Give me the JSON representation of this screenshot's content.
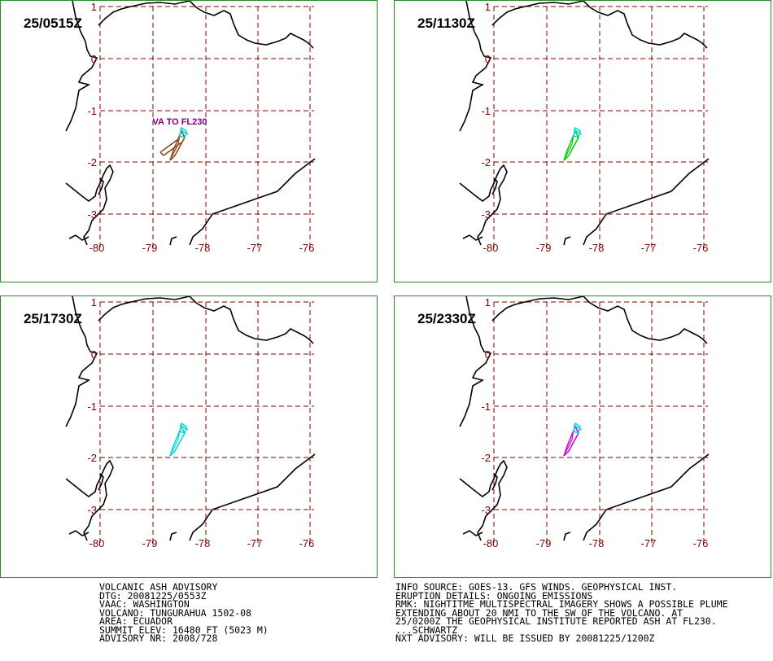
{
  "panels": [
    {
      "time": "25/0515Z",
      "plume_color": "#00d8d8",
      "plume_color2": "#8b4513",
      "annotation": "VA TO FL230",
      "annotation_color": "#800080"
    },
    {
      "time": "25/1130Z",
      "plume_color": "#00d8d8",
      "plume_color2": "#00cc00",
      "annotation": "",
      "annotation_color": ""
    },
    {
      "time": "25/1730Z",
      "plume_color": "#00d8d8",
      "plume_color2": "#00d8d8",
      "annotation": "",
      "annotation_color": ""
    },
    {
      "time": "25/2330Z",
      "plume_color": "#00d8d8",
      "plume_color2": "#cc00cc",
      "annotation": "",
      "annotation_color": ""
    }
  ],
  "axes": {
    "lon_labels": [
      "-80",
      "-79",
      "-78",
      "-77",
      "-76"
    ],
    "lat_labels": [
      "1",
      "0",
      "-1",
      "-2",
      "-3"
    ],
    "label_color": "#800000",
    "grid_color": "#800000",
    "coast_color": "#000000",
    "frame_color": "#2a8a2a"
  },
  "advisory_left": [
    "VOLCANIC ASH ADVISORY",
    "DTG: 20081225/0553Z",
    "VAAC: WASHINGTON",
    "VOLCANO: TUNGURAHUA 1502-08",
    "AREA: ECUADOR",
    "SUMMIT ELEV: 16480 FT (5023 M)",
    "ADVISORY NR: 2008/728"
  ],
  "advisory_right": [
    "INFO SOURCE: GOES-13. GFS WINDS. GEOPHYSICAL INST.",
    "ERUPTION DETAILS: ONGOING EMISSIONS",
    "RMK: NIGHTITME MULTISPECTRAL IMAGERY SHOWS A POSSIBLE PLUME",
    "EXTENDING ABOUT 20 NMI TO THE SW OF THE VOLCANO. AT",
    "25/0200Z THE GEOPHYSICAL INSTITUTE REPORTED ASH AT FL230.",
    "...SCHWARTZ",
    "NXT ADVISORY: WILL BE ISSUED BY 20081225/1200Z"
  ]
}
